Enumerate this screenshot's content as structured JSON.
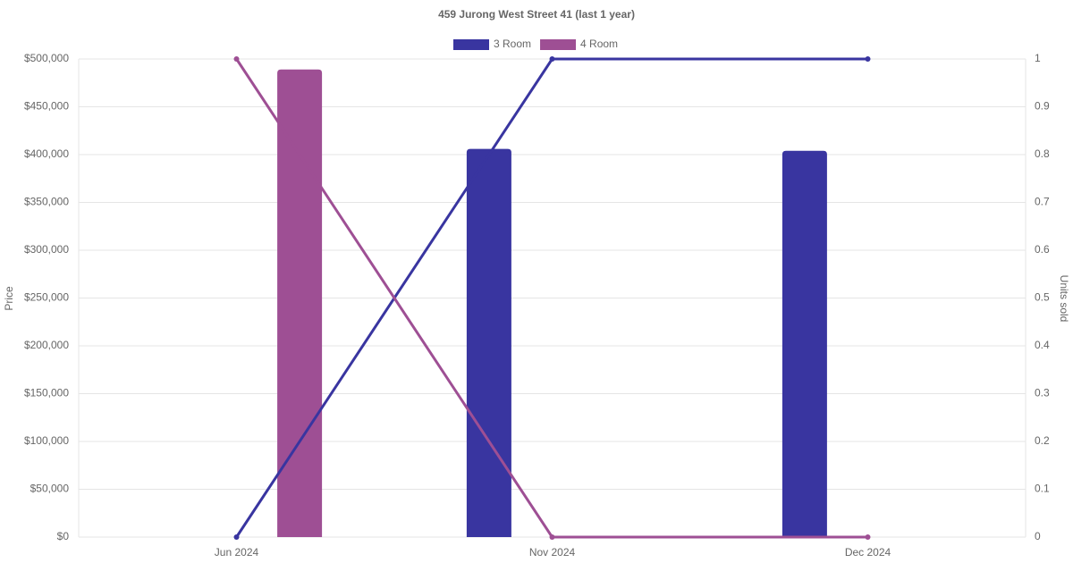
{
  "chart_data": {
    "type": "bar-line",
    "title": "459 Jurong West Street 41 (last 1 year)",
    "y_label": "Price",
    "y2_label": "Units sold",
    "categories": [
      "Jun 2024",
      "Nov 2024",
      "Dec 2024"
    ],
    "series": [
      {
        "name": "3 Room",
        "color": "#3935a0",
        "values": [
          null,
          406000,
          404000
        ],
        "units_sold": [
          0,
          1,
          1
        ]
      },
      {
        "name": "4 Room",
        "color": "#9e4f94",
        "values": [
          489000,
          null,
          null
        ],
        "units_sold": [
          1,
          0,
          0
        ]
      }
    ],
    "ylim": [
      0,
      500000
    ],
    "yticks": [
      {
        "value": 0,
        "label": "$0"
      },
      {
        "value": 50000,
        "label": "$50,000"
      },
      {
        "value": 100000,
        "label": "$100,000"
      },
      {
        "value": 150000,
        "label": "$150,000"
      },
      {
        "value": 200000,
        "label": "$200,000"
      },
      {
        "value": 250000,
        "label": "$250,000"
      },
      {
        "value": 300000,
        "label": "$300,000"
      },
      {
        "value": 350000,
        "label": "$350,000"
      },
      {
        "value": 400000,
        "label": "$400,000"
      },
      {
        "value": 450000,
        "label": "$450,000"
      },
      {
        "value": 500000,
        "label": "$500,000"
      }
    ],
    "y2lim": [
      0,
      1
    ],
    "y2ticks": [
      0,
      0.1,
      0.2,
      0.3,
      0.4,
      0.5,
      0.6,
      0.7,
      0.8,
      0.9,
      1
    ],
    "grid": true,
    "legend": "top"
  }
}
